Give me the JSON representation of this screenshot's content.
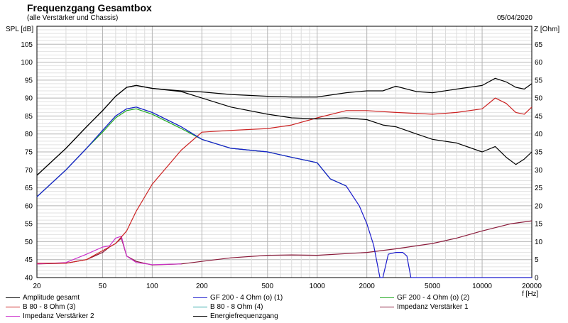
{
  "header": {
    "title": "Frequenzgang Gesamtbox",
    "subtitle": "(alle Verstärker und Chassis)",
    "date": "05/04/2020"
  },
  "colors": {
    "black": "#000000",
    "blue": "#1a1acc",
    "red": "#cc2222",
    "green": "#22aa22",
    "teal": "#2aa6a6",
    "maroon": "#8a1a3a",
    "magenta": "#cc33cc",
    "grid": "#c8c8c8",
    "frame": "#000000"
  },
  "chart_data": {
    "type": "line",
    "title": "Frequenzgang Gesamtbox",
    "subtitle": "(alle Verstärker und Chassis)",
    "xlabel": "f [Hz]",
    "ylabel": "SPL [dB]",
    "y2label": "Z [Ohm]",
    "x_scale": "log",
    "xlim": [
      20,
      20000
    ],
    "ylim": [
      40,
      110
    ],
    "y2lim": [
      0,
      70
    ],
    "grid": true,
    "legend_position": "bottom",
    "x_ticks": [
      "20",
      "50",
      "100",
      "200",
      "500",
      "1000",
      "2000",
      "5000",
      "10000",
      "20000"
    ],
    "y_ticks": [
      "40",
      "45",
      "50",
      "55",
      "60",
      "65",
      "70",
      "75",
      "80",
      "85",
      "90",
      "95",
      "100",
      "105"
    ],
    "y2_ticks": [
      "0",
      "5",
      "10",
      "15",
      "20",
      "25",
      "30",
      "35",
      "40",
      "45",
      "50",
      "55",
      "60",
      "65"
    ],
    "series": [
      {
        "name": "Amplitude gesamt",
        "color": "#000000",
        "axis": "left",
        "x": [
          20,
          30,
          40,
          50,
          60,
          70,
          80,
          100,
          150,
          200,
          300,
          500,
          700,
          1000,
          1500,
          2000,
          2500,
          3000,
          4000,
          5000,
          7000,
          10000,
          12000,
          14000,
          16000,
          18000,
          20000
        ],
        "y": [
          68.5,
          76,
          82,
          86.5,
          90.5,
          93,
          93.5,
          92.7,
          91.8,
          90,
          87.5,
          85.5,
          84.5,
          84.2,
          84.5,
          84,
          82.5,
          82,
          80,
          78.5,
          77.5,
          75,
          76.5,
          73.5,
          71.5,
          73,
          75
        ]
      },
      {
        "name": "GF 200 - 4 Ohm (o) (1)",
        "color": "#1a1acc",
        "axis": "left",
        "x": [
          20,
          30,
          40,
          50,
          60,
          70,
          80,
          100,
          150,
          200,
          300,
          500,
          700,
          1000,
          1200,
          1500,
          1800,
          2000,
          2200,
          2400,
          2500,
          2700,
          3000,
          3300,
          3500,
          3700,
          4000,
          5000,
          10000,
          20000
        ],
        "y": [
          62.5,
          70,
          76,
          81,
          85,
          87,
          87.5,
          86,
          82,
          78.5,
          76,
          75,
          73.5,
          72,
          67.5,
          65.5,
          60,
          55,
          49,
          40,
          40,
          46.5,
          47,
          47,
          46,
          40,
          40,
          40,
          40,
          40
        ]
      },
      {
        "name": "GF 200 - 4 Ohm (o) (2)",
        "color": "#22aa22",
        "axis": "left",
        "x": [
          20,
          30,
          40,
          50,
          60,
          70,
          80,
          100,
          150,
          200,
          300,
          500,
          700,
          1000,
          1200,
          1500
        ],
        "y": [
          62.5,
          70,
          76,
          80.5,
          84.5,
          86.5,
          87,
          85.5,
          81.5,
          78.5,
          76,
          75,
          73.5,
          72,
          67.5,
          65.5
        ]
      },
      {
        "name": "B 80 - 8 Ohm (3)",
        "color": "#cc2222",
        "axis": "left",
        "x": [
          20,
          30,
          40,
          50,
          60,
          70,
          80,
          100,
          150,
          200,
          300,
          500,
          700,
          1000,
          1500,
          2000,
          3000,
          5000,
          7000,
          10000,
          12000,
          14000,
          16000,
          18000,
          20000
        ],
        "y": [
          44,
          44,
          45,
          47.5,
          49.5,
          53,
          58.5,
          66,
          75.5,
          80.5,
          81,
          81.5,
          82.5,
          84.5,
          86.5,
          86.5,
          86,
          85.5,
          86,
          87,
          90,
          88.5,
          86,
          85.5,
          87.5
        ]
      },
      {
        "name": "B 80 - 8 Ohm (4)",
        "color": "#2aa6a6",
        "axis": "left",
        "x": [
          20,
          30,
          40,
          50,
          60,
          70,
          80,
          100,
          150,
          200,
          300,
          500,
          700,
          1000,
          1200,
          1500
        ],
        "y": [
          62.5,
          70,
          76,
          81,
          85,
          87,
          87.5,
          86,
          82,
          78.5,
          76,
          75,
          73.5,
          72,
          67.5,
          65.5
        ]
      },
      {
        "name": "Impedanz Verstärker 1",
        "color": "#8a1a3a",
        "axis": "right",
        "x": [
          20,
          30,
          40,
          50,
          55,
          60,
          65,
          70,
          80,
          100,
          150,
          200,
          300,
          500,
          700,
          1000,
          2000,
          3000,
          5000,
          7000,
          10000,
          15000,
          20000
        ],
        "y": [
          3.8,
          4,
          5,
          7,
          8.5,
          9.5,
          11,
          6,
          4.5,
          3.5,
          3.8,
          4.5,
          5.5,
          6.2,
          6.3,
          6.2,
          7,
          8,
          9.5,
          11,
          13,
          15,
          15.8
        ]
      },
      {
        "name": "Impedanz Verstärker 2",
        "color": "#cc33cc",
        "axis": "right",
        "x": [
          20,
          30,
          40,
          50,
          55,
          60,
          65,
          70,
          80,
          100,
          150
        ],
        "y": [
          3.8,
          4.2,
          6.5,
          8.5,
          8.8,
          11,
          11.5,
          6,
          4.2,
          3.6,
          3.8
        ]
      },
      {
        "name": "Energiefrequenzgang",
        "color": "#000000",
        "axis": "left",
        "x": [
          20,
          30,
          40,
          50,
          60,
          70,
          80,
          100,
          150,
          200,
          300,
          500,
          700,
          1000,
          1500,
          2000,
          2500,
          3000,
          4000,
          5000,
          7000,
          10000,
          12000,
          14000,
          16000,
          18000,
          20000
        ],
        "y": [
          68.5,
          76,
          82,
          86.5,
          90.5,
          93,
          93.5,
          92.7,
          92,
          91.7,
          91,
          90.5,
          90.3,
          90.3,
          91.5,
          92,
          92,
          93.3,
          91.8,
          91.5,
          92.5,
          93.5,
          95.5,
          94.5,
          93,
          92.5,
          94
        ]
      }
    ]
  },
  "legend": {
    "items": [
      "Amplitude gesamt",
      "GF 200 - 4 Ohm (o) (1)",
      "GF 200 - 4 Ohm (o) (2)",
      "B 80 - 8 Ohm (3)",
      "B 80 - 8 Ohm (4)",
      "Impedanz Verstärker 1",
      "Impedanz Verstärker 2",
      "Energiefrequenzgang"
    ]
  }
}
